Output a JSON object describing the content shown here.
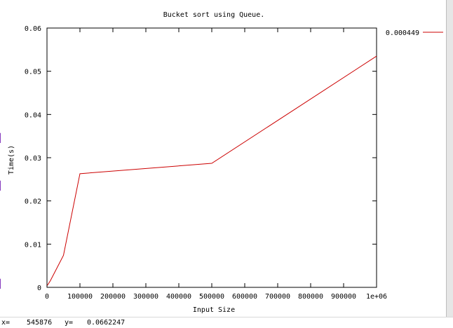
{
  "window": {
    "status": {
      "x_label": "x=",
      "x_value": "545876",
      "y_label": "y=",
      "y_value": "0.0662247"
    }
  },
  "colors": {
    "series": "#cc0000",
    "axis": "#000000",
    "background": "#ffffff"
  },
  "chart_data": {
    "type": "line",
    "title": "Bucket sort using Queue.",
    "xlabel": "Input Size",
    "ylabel": "Time(s)",
    "xlim": [
      0,
      1000000
    ],
    "ylim": [
      0,
      0.06
    ],
    "xticks": [
      0,
      100000,
      200000,
      300000,
      400000,
      500000,
      600000,
      700000,
      800000,
      900000,
      1000000
    ],
    "xtick_labels": [
      "0",
      "100000",
      "200000",
      "300000",
      "400000",
      "500000",
      "600000",
      "700000",
      "800000",
      "900000",
      "1e+06"
    ],
    "yticks": [
      0,
      0.01,
      0.02,
      0.03,
      0.04,
      0.05,
      0.06
    ],
    "ytick_labels": [
      "0",
      "0.01",
      "0.02",
      "0.03",
      "0.04",
      "0.05",
      "0.06"
    ],
    "legend_position": "outside-top-right",
    "series": [
      {
        "name": "0.000449",
        "color": "#cc0000",
        "x": [
          1000,
          10000,
          50000,
          100000,
          500000,
          1000000
        ],
        "y": [
          0.000449,
          0.0015,
          0.0074,
          0.0263,
          0.0287,
          0.0535
        ]
      }
    ]
  }
}
